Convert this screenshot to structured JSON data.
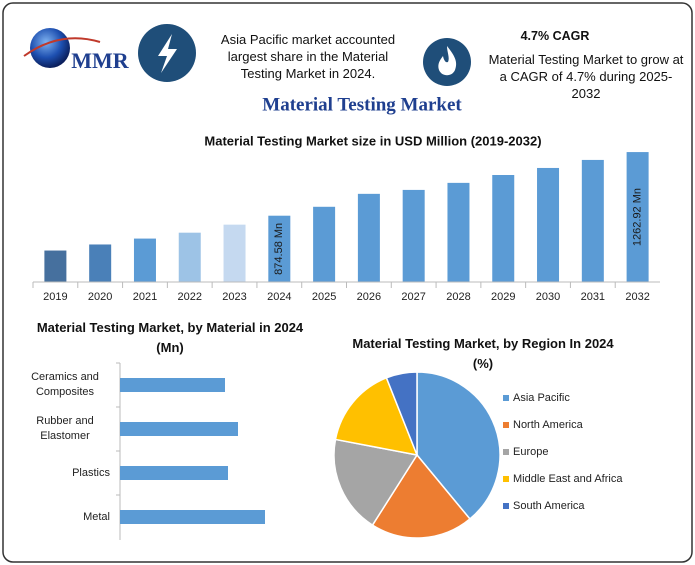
{
  "logo": "MMR",
  "info_left": "Asia Pacific market accounted largest share in the Material Testing Market in 2024.",
  "cagr_title": "4.7% CAGR",
  "info_right": "Material Testing Market to grow at a CAGR of 4.7% during 2025-2032",
  "title": "Material Testing Market",
  "chart_data": [
    {
      "type": "bar",
      "title": "Material Testing Market size in USD Million (2019-2032)",
      "categories": [
        "2019",
        "2020",
        "2021",
        "2022",
        "2023",
        "2024",
        "2025",
        "2026",
        "2027",
        "2028",
        "2029",
        "2030",
        "2031",
        "2032"
      ],
      "values": [
        662,
        699,
        735,
        771,
        820,
        874.58,
        929,
        1008,
        1032,
        1075,
        1123,
        1166,
        1215,
        1262.92
      ],
      "value_labels": [
        null,
        null,
        null,
        null,
        null,
        "874.58 Mn",
        null,
        null,
        null,
        null,
        null,
        null,
        null,
        "1262.92 Mn"
      ],
      "colors": [
        "#46709e",
        "#4a80b8",
        "#5b9bd5",
        "#9dc3e6",
        "#c5d9f0",
        "#5b9bd5",
        "#5b9bd5",
        "#5b9bd5",
        "#5b9bd5",
        "#5b9bd5",
        "#5b9bd5",
        "#5b9bd5",
        "#5b9bd5",
        "#5b9bd5"
      ],
      "ylim": [
        470,
        1300
      ]
    },
    {
      "type": "hbar",
      "title": "Material Testing Market, by Material in 2024 (Mn)",
      "categories": [
        "Ceramics and Composites",
        "Rubber and Elastomer",
        "Plastics",
        "Metal"
      ],
      "values": [
        105,
        118,
        108,
        145
      ],
      "color": "#5b9bd5",
      "xlim": [
        0,
        150
      ]
    },
    {
      "type": "pie",
      "title": "Material Testing Market, by Region In 2024 (%)",
      "categories": [
        "Asia Pacific",
        "North America",
        "Europe",
        "Middle East and Africa",
        "South America"
      ],
      "values": [
        39,
        20,
        19,
        16,
        6
      ],
      "colors": [
        "#5b9bd5",
        "#ed7d31",
        "#a5a5a5",
        "#ffc000",
        "#4472c4"
      ]
    }
  ]
}
